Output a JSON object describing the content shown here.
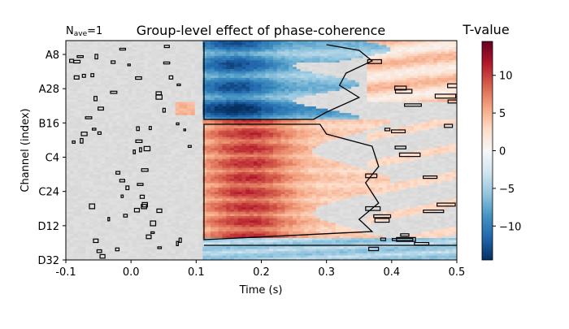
{
  "chart_data": {
    "type": "heatmap",
    "title": "Group-level effect of phase-coherence",
    "corner_label_main": "N",
    "corner_label_sub": "ave",
    "corner_label_value": "=1",
    "xlabel": "Time (s)",
    "ylabel": "Channel (index)",
    "x_ticks": [
      "-0.1",
      "0.0",
      "0.1",
      "0.2",
      "0.3",
      "0.4",
      "0.5"
    ],
    "x_tick_values": [
      -0.1,
      0.0,
      0.1,
      0.2,
      0.3,
      0.4,
      0.5
    ],
    "xlim": [
      -0.1,
      0.5
    ],
    "y_ticks": [
      "A8",
      "A28",
      "B16",
      "C4",
      "C24",
      "D12",
      "D32"
    ],
    "colorbar_label": "T-value",
    "colorbar_ticks": [
      "10",
      "5",
      "0",
      "−5",
      "−10"
    ],
    "colorbar_tick_values": [
      10,
      5,
      0,
      -5,
      -10
    ],
    "clim": [
      -14.5,
      14.5
    ],
    "colormap": "RdBu_r",
    "mask_color": "#e0e0e0",
    "contour_color": "#000000",
    "significant_clusters": [
      {
        "channels": "A8–B16",
        "time_range": [
          0.11,
          0.35
        ],
        "sign": "negative",
        "peak_t": -12
      },
      {
        "channels": "B16–D12",
        "time_range": [
          0.11,
          0.4
        ],
        "sign": "positive",
        "peak_t": 11
      },
      {
        "channels": "D12–D32",
        "time_range": [
          0.11,
          0.5
        ],
        "sign": "negative",
        "peak_t": -6
      },
      {
        "channels": "A8–A28",
        "time_range": [
          0.35,
          0.5
        ],
        "sign": "positive",
        "peak_t": 4
      }
    ]
  }
}
